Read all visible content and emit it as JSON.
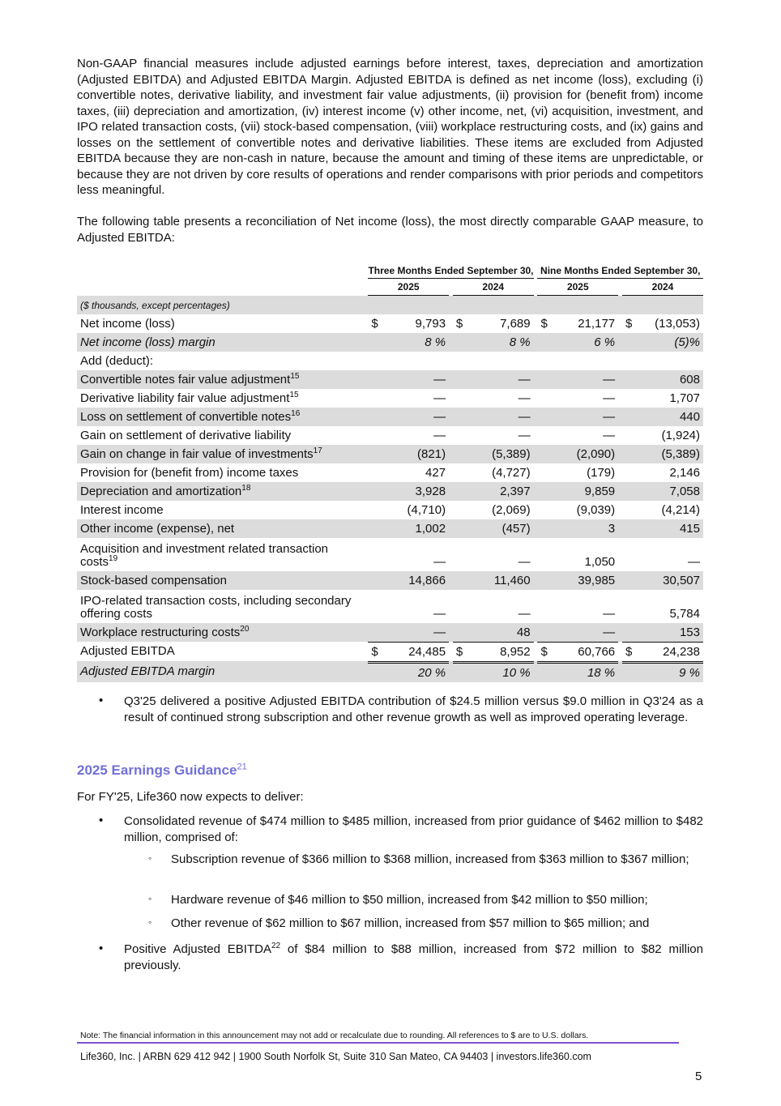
{
  "intro_paragraph": "Non-GAAP financial measures include adjusted earnings before interest, taxes, depreciation and amortization (Adjusted EBITDA) and Adjusted EBITDA Margin. Adjusted EBITDA is defined as net income (loss), excluding (i) convertible notes, derivative liability, and investment fair value adjustments, (ii) provision for (benefit from) income taxes, (iii) depreciation and amortization, (iv) interest income (v) other income, net, (vi) acquisition, investment, and IPO related transaction costs, (vii) stock-based compensation, (viii) workplace restructuring costs, and (ix) gains and losses on the settlement of convertible notes and derivative liabilities. These items are excluded from Adjusted EBITDA because they are non-cash in nature, because the amount and timing of these items are unpredictable, or because they are not driven by core results of operations and render comparisons with prior periods and competitors less meaningful.",
  "table_intro": "The following table presents a reconciliation of Net income (loss), the most directly comparable GAAP measure, to Adjusted EBITDA:",
  "table": {
    "group_headers": [
      "Three Months Ended September 30,",
      "Nine Months Ended September 30,"
    ],
    "year_headers": [
      "2025",
      "2024",
      "2025",
      "2024"
    ],
    "rows": [
      {
        "label": "($ thousands, except percentages)",
        "shaded": true,
        "italic": true,
        "small": true,
        "values": [
          "",
          "",
          "",
          ""
        ]
      },
      {
        "label": "Net income (loss)",
        "dollar": true,
        "values": [
          "9,793",
          "7,689",
          "21,177",
          "(13,053)"
        ]
      },
      {
        "label": "Net income (loss) margin",
        "shaded": true,
        "italic": true,
        "values": [
          "8 %",
          "8 %",
          "6 %",
          "(5)%"
        ]
      },
      {
        "label": "Add (deduct):",
        "values": [
          "",
          "",
          "",
          ""
        ]
      },
      {
        "label": "Convertible notes fair value adjustment",
        "sup": "15",
        "shaded": true,
        "values": [
          "—",
          "—",
          "—",
          "608"
        ]
      },
      {
        "label": "Derivative liability fair value adjustment",
        "sup": "15",
        "values": [
          "—",
          "—",
          "—",
          "1,707"
        ]
      },
      {
        "label": "Loss on settlement of convertible notes",
        "sup": "16",
        "shaded": true,
        "values": [
          "—",
          "—",
          "—",
          "440"
        ]
      },
      {
        "label": "Gain on settlement of derivative liability",
        "values": [
          "—",
          "—",
          "—",
          "(1,924)"
        ]
      },
      {
        "label": "Gain on change in fair value of investments",
        "sup": "17",
        "shaded": true,
        "values": [
          "(821)",
          "(5,389)",
          "(2,090)",
          "(5,389)"
        ]
      },
      {
        "label": "Provision for (benefit from) income taxes",
        "values": [
          "427",
          "(4,727)",
          "(179)",
          "2,146"
        ]
      },
      {
        "label": "Depreciation and amortization",
        "sup": "18",
        "shaded": true,
        "values": [
          "3,928",
          "2,397",
          "9,859",
          "7,058"
        ]
      },
      {
        "label": "Interest income",
        "values": [
          "(4,710)",
          "(2,069)",
          "(9,039)",
          "(4,214)"
        ]
      },
      {
        "label": "Other income (expense), net",
        "shaded": true,
        "values": [
          "1,002",
          "(457)",
          "3",
          "415"
        ]
      },
      {
        "label": "Acquisition and investment related transaction costs",
        "sup": "19",
        "tall": true,
        "values": [
          "—",
          "—",
          "1,050",
          "—"
        ]
      },
      {
        "label": "Stock-based compensation",
        "shaded": true,
        "values": [
          "14,866",
          "11,460",
          "39,985",
          "30,507"
        ]
      },
      {
        "label": "IPO-related transaction costs, including secondary offering costs",
        "tall": true,
        "values": [
          "—",
          "—",
          "—",
          "5,784"
        ]
      },
      {
        "label": "Workplace restructuring costs",
        "sup": "20",
        "shaded": true,
        "values": [
          "—",
          "48",
          "—",
          "153"
        ]
      },
      {
        "label": "Adjusted EBITDA",
        "dollar": true,
        "total": true,
        "values": [
          "24,485",
          "8,952",
          "60,766",
          "24,238"
        ]
      },
      {
        "label": "Adjusted EBITDA margin",
        "shaded": true,
        "italic": true,
        "double": true,
        "values": [
          "20 %",
          "10 %",
          "18 %",
          "9 %"
        ]
      }
    ]
  },
  "bullet_q3": "Q3'25 delivered a positive Adjusted EBITDA contribution of $24.5 million versus $9.0 million in Q3'24 as a result of continued strong subscription and other revenue growth as well as improved operating leverage.",
  "guidance": {
    "heading": "2025 Earnings Guidance",
    "heading_sup": "21",
    "lead": "For FY'25, Life360 now expects to deliver:",
    "bullet1": "Consolidated revenue of $474 million to $485 million, increased from prior guidance of $462 million to $482 million, comprised of:",
    "sub1": "Subscription revenue of $366 million to $368 million, increased from $363 million to $367 million;",
    "sub2": "Hardware revenue of $46 million to $50 million, increased from $42 million to $50 million;",
    "sub3": "Other revenue of $62 million to $67 million, increased from $57 million to $65 million; and",
    "bullet2_pre": "Positive Adjusted EBITDA",
    "bullet2_sup": "22",
    "bullet2_post": " of $84 million to $88 million, increased from $72 million to $82 million previously."
  },
  "footer": {
    "note": "Note: The financial information in this announcement may not add or recalculate due to rounding. All references to $ are to U.S. dollars.",
    "company": "Life360, Inc.  |  ARBN 629 412 942  |  1900 South Norfolk St, Suite 310 San Mateo, CA 94403  |  investors.life360.com",
    "page_number": "5",
    "rule_color": "#7a4fd6"
  },
  "heading_color": "#7270d9"
}
